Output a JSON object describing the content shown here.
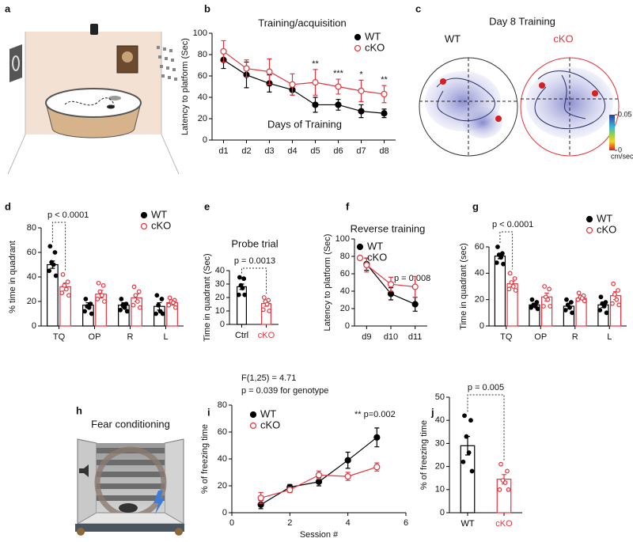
{
  "chart_data": [
    {
      "type": "line",
      "panel": "b",
      "title": "Training/acquisition",
      "ylabel": "Latency to platform (Sec)",
      "annotations": [
        "Days of Training"
      ],
      "categories": [
        "d1",
        "d2",
        "d3",
        "d4",
        "d5",
        "d6",
        "d7",
        "d8"
      ],
      "series": [
        {
          "name": "WT",
          "color": "#000000",
          "marker": "filled",
          "values": [
            75,
            61,
            53,
            47,
            33,
            33,
            27,
            25
          ],
          "errors": [
            8,
            12,
            8,
            5,
            7,
            5,
            6,
            4
          ]
        },
        {
          "name": "cKO",
          "color": "#e8323c",
          "marker": "open",
          "values": [
            83,
            67,
            64,
            52,
            54,
            50,
            46,
            43
          ],
          "errors": [
            10,
            8,
            12,
            10,
            12,
            7,
            10,
            8
          ]
        }
      ],
      "significance": [
        null,
        null,
        null,
        null,
        "**",
        "***",
        "*",
        "**"
      ],
      "ylim": [
        0,
        100
      ],
      "yticks": [
        0,
        20,
        40,
        60,
        80,
        100
      ],
      "legend": "top-right"
    },
    {
      "type": "bar",
      "panel": "d",
      "ylabel": "% time in quadrant",
      "annotations": [
        "p < 0.0001"
      ],
      "categories": [
        "TQ",
        "OP",
        "R",
        "L"
      ],
      "series": [
        {
          "name": "WT",
          "color": "#000000",
          "marker": "filled",
          "values": [
            50,
            17,
            17,
            16
          ],
          "errors": [
            3,
            2,
            2,
            3
          ],
          "points": [
            [
              65,
              60,
              52,
              50,
              45,
              41
            ],
            [
              22,
              18,
              16,
              15,
              12,
              10
            ],
            [
              22,
              18,
              17,
              15,
              13,
              12
            ],
            [
              25,
              22,
              17,
              12,
              10,
              10
            ]
          ]
        },
        {
          "name": "cKO",
          "color": "#e8323c",
          "marker": "open",
          "values": [
            32,
            26,
            23,
            19
          ],
          "errors": [
            3,
            3,
            3,
            2
          ],
          "points": [
            [
              42,
              36,
              33,
              30,
              27,
              25
            ],
            [
              35,
              33,
              28,
              25,
              22,
              20
            ],
            [
              32,
              28,
              25,
              20,
              17,
              15
            ],
            [
              23,
              21,
              20,
              19,
              17,
              15
            ]
          ]
        }
      ],
      "ylim": [
        0,
        80
      ],
      "yticks": [
        0,
        20,
        40,
        60,
        80
      ],
      "legend": "top-right"
    },
    {
      "type": "bar",
      "panel": "e",
      "title": "Probe trial",
      "ylabel": "Time in quadrant (Sec)",
      "annotations": [
        "p = 0.0013"
      ],
      "categories": [
        "Ctrl",
        "cKO"
      ],
      "values": [
        28,
        15.5
      ],
      "errors": [
        2,
        2
      ],
      "points": [
        [
          35,
          34,
          29,
          27,
          22,
          22
        ],
        [
          20,
          18,
          17,
          15,
          11,
          10
        ]
      ],
      "colors": [
        "#000000",
        "#e8323c"
      ],
      "markers": [
        "filled",
        "open"
      ],
      "ylim": [
        0,
        40
      ],
      "yticks": [
        0,
        10,
        20,
        30,
        40
      ]
    },
    {
      "type": "line",
      "panel": "f",
      "title": "Reverse training",
      "ylabel": "Latency to platform (Sec)",
      "annotations": [
        "p = 0.008"
      ],
      "categories": [
        "d9",
        "d10",
        "d11"
      ],
      "series": [
        {
          "name": "WT",
          "color": "#000000",
          "marker": "filled",
          "values": [
            71,
            37,
            25
          ],
          "errors": [
            7,
            7,
            8
          ]
        },
        {
          "name": "cKO",
          "color": "#e8323c",
          "marker": "open",
          "values": [
            70,
            48,
            45
          ],
          "errors": [
            8,
            8,
            12
          ]
        }
      ],
      "ylim": [
        0,
        100
      ],
      "yticks": [
        0,
        20,
        40,
        60,
        80,
        100
      ],
      "legend": "top-left"
    },
    {
      "type": "bar",
      "panel": "g",
      "ylabel": "Time in quadrant (sec)",
      "annotations": [
        "p < 0.0001"
      ],
      "categories": [
        "TQ",
        "OP",
        "R",
        "L"
      ],
      "series": [
        {
          "name": "WT",
          "color": "#000000",
          "marker": "filled",
          "values": [
            53,
            16,
            15,
            16
          ],
          "errors": [
            2,
            1,
            2,
            2
          ],
          "points": [
            [
              60,
              55,
              54,
              52,
              48,
              47
            ],
            [
              20,
              18,
              16,
              15,
              14,
              13
            ],
            [
              20,
              18,
              16,
              14,
              12,
              10
            ],
            [
              22,
              18,
              17,
              15,
              12,
              10
            ]
          ]
        },
        {
          "name": "cKO",
          "color": "#e8323c",
          "marker": "open",
          "values": [
            32,
            22,
            21,
            23
          ],
          "errors": [
            2,
            3,
            1,
            3
          ],
          "points": [
            [
              40,
              36,
              33,
              30,
              28,
              27
            ],
            [
              30,
              28,
              22,
              20,
              15,
              15
            ],
            [
              25,
              23,
              22,
              21,
              20,
              19
            ],
            [
              32,
              27,
              24,
              20,
              17,
              16
            ]
          ]
        }
      ],
      "ylim": [
        0,
        60
      ],
      "yticks": [
        0,
        20,
        40,
        60
      ],
      "legend": "top-right"
    },
    {
      "type": "line",
      "panel": "i",
      "xlabel": "Session #",
      "ylabel": "% of freezing time",
      "annotations": [
        "F(1,25) = 4.71",
        "p = 0.039 for genotype",
        "** p=0.002"
      ],
      "x": [
        1,
        2,
        3,
        4,
        5
      ],
      "series": [
        {
          "name": "WT",
          "color": "#000000",
          "marker": "filled",
          "values": [
            6,
            19,
            23,
            39,
            56
          ],
          "errors": [
            3,
            2,
            3,
            6,
            7
          ]
        },
        {
          "name": "cKO",
          "color": "#e8323c",
          "marker": "open",
          "values": [
            11,
            17,
            28,
            27,
            34
          ],
          "errors": [
            4,
            2,
            3,
            3,
            3
          ]
        }
      ],
      "xlim": [
        0,
        6
      ],
      "xticks": [
        0,
        2,
        4,
        6
      ],
      "ylim": [
        0,
        80
      ],
      "yticks": [
        0,
        20,
        40,
        60,
        80
      ],
      "legend": "top-left"
    },
    {
      "type": "bar",
      "panel": "j",
      "ylabel": "% of freezing time",
      "annotations": [
        "p = 0.005"
      ],
      "categories": [
        "WT",
        "cKO"
      ],
      "values": [
        29,
        14.5
      ],
      "errors": [
        4,
        2
      ],
      "points": [
        [
          42,
          40,
          33,
          26,
          22,
          18
        ],
        [
          21,
          18,
          14,
          13,
          10,
          10
        ]
      ],
      "colors": [
        "#000000",
        "#e8323c"
      ],
      "markers": [
        "filled",
        "open"
      ],
      "ylim": [
        0,
        50
      ],
      "yticks": [
        0,
        10,
        20,
        30,
        40,
        50
      ]
    }
  ],
  "illustrations": [
    {
      "panel": "a"
    },
    {
      "panel": "c",
      "title": "Day 8 Training",
      "groups": [
        "WT",
        "cKO"
      ],
      "colorbar_ticks": [
        0.05,
        0
      ],
      "colorbar_unit": "cm/sec"
    },
    {
      "panel": "h",
      "title": "Fear conditioning"
    }
  ]
}
